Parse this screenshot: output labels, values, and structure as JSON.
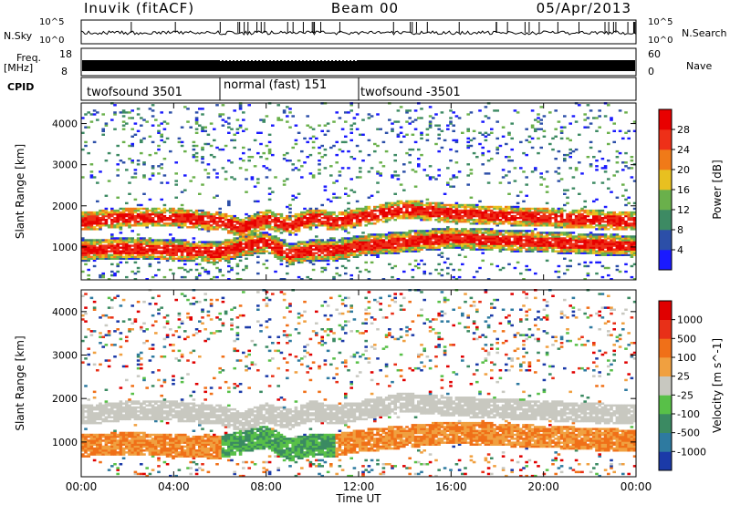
{
  "header": {
    "title_left": "Inuvik (fitACF)",
    "title_center": "Beam 00",
    "title_right": "05/Apr/2013"
  },
  "strip_panels": {
    "nsky_label": "N.Sky",
    "nsky_ticks": [
      "10^5",
      "10^0"
    ],
    "nsearch_label": "N.Search",
    "freq_label": "Freq.",
    "freq_unit": "[MHz]",
    "freq_ticks": [
      "18",
      "8"
    ],
    "nave_ticks": [
      "60",
      "0"
    ],
    "nave_label": "Nave",
    "cpid_label": "CPID",
    "cpid_segments": [
      {
        "start": 0,
        "end": 6,
        "label": "twofsound 3501"
      },
      {
        "start": 6,
        "end": 12,
        "label": "normal (fast) 151"
      },
      {
        "start": 12,
        "end": 24,
        "label": "twofsound -3501"
      }
    ]
  },
  "chart_data": [
    {
      "type": "heatmap",
      "title": "",
      "ylabel": "Slant Range [km]",
      "xlabel": "",
      "xlim": [
        0,
        24
      ],
      "ylim": [
        200,
        4500
      ],
      "yticks": [
        1000,
        2000,
        3000,
        4000
      ],
      "colorbar": {
        "label": "Power [dB]",
        "ticks": [
          "4",
          "8",
          "12",
          "16",
          "20",
          "24",
          "28"
        ],
        "colors": [
          "#1a1aff",
          "#2c4fa8",
          "#3d8a63",
          "#6ab04b",
          "#e8c020",
          "#f07a18",
          "#ee3018",
          "#e80000"
        ]
      },
      "features": [
        {
          "name": "lower band",
          "center_km": [
            900,
            950,
            900,
            850,
            1000,
            1100,
            800,
            900,
            900,
            1000,
            1100,
            1200,
            1100,
            1000
          ],
          "time_h": [
            0,
            2,
            4,
            6,
            7,
            8,
            9,
            10,
            11,
            12,
            14,
            16,
            20,
            24
          ]
        },
        {
          "name": "upper band",
          "center_km": [
            1600,
            1700,
            1700,
            1600,
            1450,
            1650,
            1500,
            1700,
            1600,
            1700,
            1900,
            1800,
            1700,
            1600
          ],
          "time_h": [
            0,
            2,
            4,
            6,
            7,
            8,
            9,
            10,
            11,
            12,
            14,
            16,
            20,
            24
          ]
        }
      ]
    },
    {
      "type": "heatmap",
      "title": "",
      "ylabel": "Slant Range [km]",
      "xlabel": "Time UT",
      "xlim": [
        0,
        24
      ],
      "ylim": [
        200,
        4500
      ],
      "yticks": [
        1000,
        2000,
        3000,
        4000
      ],
      "xticks": [
        "00:00",
        "04:00",
        "08:00",
        "12:00",
        "16:00",
        "20:00",
        "00:00"
      ],
      "colorbar": {
        "label": "Velocity [m s^-1]",
        "ticks": [
          "1000",
          "500",
          "100",
          "25",
          "-25",
          "-100",
          "-500",
          "-1000"
        ],
        "colors": [
          "#1b3aa8",
          "#2e7aa0",
          "#3b8a62",
          "#58c048",
          "#c8c8c0",
          "#f0a040",
          "#f07018",
          "#e83018",
          "#e00000"
        ]
      }
    }
  ]
}
